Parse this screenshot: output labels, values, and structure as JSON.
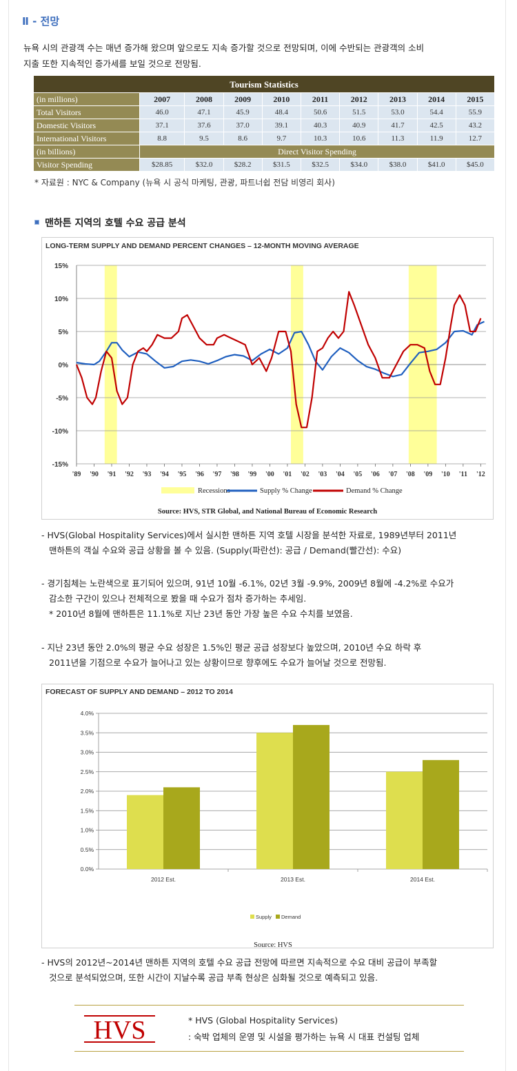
{
  "section": {
    "title": "Ⅱ - 전망"
  },
  "intro": {
    "line1": "뉴욕 시의 관광객 수는 매년 증가해 왔으며 앞으로도 지속 증가할 것으로 전망되며, 이에 수반되는 관광객의 소비",
    "line2": "지출 또한 지속적인 증가세를 보일 것으로 전망됨."
  },
  "tourism_table": {
    "title": "Tourism Statistics",
    "unit_millions": "(in millions)",
    "years": [
      "2007",
      "2008",
      "2009",
      "2010",
      "2011",
      "2012",
      "2013",
      "2014",
      "2015"
    ],
    "rows": [
      {
        "label": "Total Visitors",
        "values": [
          "46.0",
          "47.1",
          "45.9",
          "48.4",
          "50.6",
          "51.5",
          "53.0",
          "54.4",
          "55.9"
        ]
      },
      {
        "label": "Domestic Visitors",
        "values": [
          "37.1",
          "37.6",
          "37.0",
          "39.1",
          "40.3",
          "40.9",
          "41.7",
          "42.5",
          "43.2"
        ]
      },
      {
        "label": "International Visitors",
        "values": [
          "8.8",
          "9.5",
          "8.6",
          "9.7",
          "10.3",
          "10.6",
          "11.3",
          "11.9",
          "12.7"
        ]
      }
    ],
    "unit_billions": "(in billions)",
    "spending_header": "Direct Visitor Spending",
    "spending_row": {
      "label": "Visitor Spending",
      "values": [
        "$28.85",
        "$32.0",
        "$28.2",
        "$31.5",
        "$32.5",
        "$34.0",
        "$38.0",
        "$41.0",
        "$45.0"
      ]
    },
    "source": "* 자료원 : NYC & Company (뉴욕 시 공식 마케팅, 관광, 파트너쉽 전담 비영리 회사)"
  },
  "subsection": {
    "title": "맨하튼 지역의 호텔 수요 공급 분석"
  },
  "chart_data": [
    {
      "type": "line",
      "title": "LONG-TERM SUPPLY AND DEMAND PERCENT CHANGES – 12-MONTH MOVING AVERAGE",
      "x_ticks": [
        "'89",
        "'90",
        "'91",
        "'92",
        "'93",
        "'94",
        "'95",
        "'96",
        "'97",
        "'98",
        "'99",
        "'00",
        "'01",
        "'02",
        "'03",
        "'04",
        "'05",
        "'06",
        "'07",
        "'08",
        "'09",
        "'10",
        "'11",
        "'12"
      ],
      "y_ticks": [
        "15%",
        "10%",
        "5%",
        "0%",
        "-5%",
        "-10%",
        "-15%"
      ],
      "ylim": [
        -15,
        15
      ],
      "xlim": [
        1989,
        2012.3
      ],
      "recessions": [
        [
          1990.6,
          1991.3
        ],
        [
          2001.2,
          2001.9
        ],
        [
          2007.9,
          2009.5
        ]
      ],
      "legend": [
        "Recessions",
        "Supply % Change",
        "Demand % Change"
      ],
      "source": "Source: HVS, STR Global, and National Bureau of Economic Research",
      "colors": {
        "supply": "#1f5fbf",
        "demand": "#c00000",
        "recession": "#ffff99",
        "grid": "#999999"
      },
      "series": [
        {
          "name": "Supply % Change",
          "x": [
            1989,
            1989.5,
            1990,
            1990.3,
            1990.7,
            1991,
            1991.3,
            1991.6,
            1992,
            1992.5,
            1993,
            1993.5,
            1994,
            1994.5,
            1995,
            1995.5,
            1996,
            1996.5,
            1997,
            1997.5,
            1998,
            1998.5,
            1999,
            1999.5,
            2000,
            2000.5,
            2001,
            2001.4,
            2001.8,
            2002.2,
            2002.6,
            2003,
            2003.5,
            2004,
            2004.5,
            2005,
            2005.5,
            2006,
            2006.5,
            2007,
            2007.5,
            2008,
            2008.5,
            2009,
            2009.5,
            2010,
            2010.5,
            2011,
            2011.5,
            2011.8,
            2012.2
          ],
          "y": [
            0.3,
            0.1,
            0,
            0.5,
            2,
            3.3,
            3.3,
            2.2,
            1.2,
            1.9,
            1.6,
            0.5,
            -0.5,
            -0.3,
            0.5,
            0.7,
            0.5,
            0.1,
            0.6,
            1.2,
            1.5,
            1.3,
            0.6,
            1.6,
            2.3,
            1.6,
            2.5,
            4.8,
            5,
            3,
            0.5,
            -0.8,
            1.2,
            2.5,
            1.8,
            0.6,
            -0.3,
            -0.7,
            -1.3,
            -1.8,
            -1.5,
            0.2,
            1.8,
            2,
            2.3,
            3.3,
            5,
            5.1,
            4.5,
            6,
            6.5
          ]
        },
        {
          "name": "Demand % Change",
          "x": [
            1989,
            1989.3,
            1989.6,
            1989.9,
            1990.1,
            1990.4,
            1990.7,
            1991,
            1991.3,
            1991.6,
            1991.9,
            1992.2,
            1992.5,
            1992.8,
            1993,
            1993.3,
            1993.6,
            1994,
            1994.4,
            1994.8,
            1995,
            1995.3,
            1995.6,
            1996,
            1996.4,
            1996.8,
            1997,
            1997.4,
            1997.8,
            1998.2,
            1998.6,
            1999,
            1999.4,
            1999.8,
            2000.1,
            2000.5,
            2000.9,
            2001.2,
            2001.5,
            2001.8,
            2002.1,
            2002.4,
            2002.7,
            2003,
            2003.3,
            2003.6,
            2003.9,
            2004.2,
            2004.5,
            2004.8,
            2005.2,
            2005.6,
            2006,
            2006.4,
            2006.8,
            2007.2,
            2007.6,
            2008,
            2008.4,
            2008.8,
            2009.1,
            2009.4,
            2009.7,
            2010,
            2010.3,
            2010.5,
            2010.8,
            2011.1,
            2011.4,
            2011.7,
            2012
          ],
          "y": [
            0,
            -2,
            -5,
            -6,
            -5,
            -1,
            2,
            1,
            -4,
            -6,
            -5,
            0,
            2,
            2.5,
            2,
            3,
            4.5,
            4,
            4,
            5,
            7,
            7.5,
            6,
            4,
            3,
            3,
            4,
            4.5,
            4,
            3.5,
            3,
            0,
            1,
            -1,
            1,
            5,
            5,
            2,
            -6,
            -9.5,
            -9.5,
            -5,
            2,
            2.5,
            4,
            5,
            4,
            5,
            11,
            9,
            6,
            3,
            1,
            -2,
            -2,
            0,
            2,
            3,
            3,
            2.5,
            -1,
            -3,
            -3,
            1,
            6,
            9,
            10.5,
            9,
            5,
            5,
            7
          ]
        }
      ]
    },
    {
      "type": "bar",
      "title": "FORECAST OF SUPPLY AND DEMAND – 2012 TO 2014",
      "categories": [
        "2012 Est.",
        "2013 Est.",
        "2014 Est."
      ],
      "y_ticks": [
        "4.0%",
        "3.5%",
        "3.0%",
        "2.5%",
        "2.0%",
        "1.5%",
        "1.0%",
        "0.5%",
        "0.0%"
      ],
      "ylim": [
        0,
        4.0
      ],
      "series": [
        {
          "name": "Supply",
          "values": [
            1.9,
            3.5,
            2.5
          ],
          "color": "#dede4e"
        },
        {
          "name": "Demand",
          "values": [
            2.1,
            3.7,
            2.8
          ],
          "color": "#a8a81c"
        }
      ],
      "source": "Source: HVS"
    }
  ],
  "desc1": {
    "line1": "- HVS(Global Hospitality Services)에서 실시한 맨하튼 지역 호텔 시장을 분석한 자료로, 1989년부터 2011년",
    "line2": "맨하튼의 객실 수요와 공급 상황을 볼 수 있음. (Supply(파란선): 공급 / Demand(빨간선): 수요)"
  },
  "desc2": {
    "line1": "- 경기침체는 노란색으로 표기되어 있으며, 91년 10월 -6.1%, 02년 3월 -9.9%, 2009년 8월에 -4.2%로 수요가",
    "line2": "감소한 구간이 있으나 전체적으로 봤을 때 수요가 점차 증가하는 추세임.",
    "line3": "* 2010년 8월에 맨하튼은 11.1%로 지난 23년 동안 가장 높은 수요 수치를 보였음."
  },
  "desc3": {
    "line1": "- 지난 23년 동안 2.0%의 평균 수요 성장은 1.5%인 평균 공급 성장보다 높았으며, 2010년 수요 하락 후",
    "line2": "2011년을 기점으로 수요가 늘어나고 있는 상황이므로 향후에도 수요가 늘어날 것으로 전망됨."
  },
  "desc4": {
    "line1": "- HVS의 2012년~2014년 맨하튼 지역의 호텔 수요 공급 전망에 따르면 지속적으로 수요 대비 공급이 부족할",
    "line2": "것으로 분석되었으며, 또한 시간이 지날수록 공급 부족 현상은 심화될 것으로 예측되고 있음."
  },
  "footer": {
    "logo_text": "HVS",
    "name": "* HVS (Global Hospitality Services)",
    "desc": ": 숙박 업체의 운영 및 시설을 평가하는 뉴욕 시 대표 컨설팅 업체"
  }
}
